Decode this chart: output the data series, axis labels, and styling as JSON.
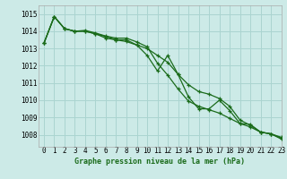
{
  "title": "Graphe pression niveau de la mer (hPa)",
  "background_color": "#cceae7",
  "grid_color": "#aad4d0",
  "line_color": "#1a6b1a",
  "xlim": [
    -0.5,
    23
  ],
  "ylim": [
    1007.3,
    1015.5
  ],
  "yticks": [
    1008,
    1009,
    1010,
    1011,
    1012,
    1013,
    1014,
    1015
  ],
  "xticks": [
    0,
    1,
    2,
    3,
    4,
    5,
    6,
    7,
    8,
    9,
    10,
    11,
    12,
    13,
    14,
    15,
    16,
    17,
    18,
    19,
    20,
    21,
    22,
    23
  ],
  "series1": [
    1013.3,
    1014.85,
    1014.15,
    1014.0,
    1014.0,
    1013.85,
    1013.6,
    1013.5,
    1013.4,
    1013.2,
    1012.6,
    1011.7,
    1012.6,
    1011.5,
    1010.2,
    1009.5,
    1009.5,
    1010.0,
    1009.4,
    1008.65,
    1008.6,
    1008.15,
    1008.05,
    1007.75
  ],
  "series2": [
    1013.3,
    1014.85,
    1014.15,
    1014.0,
    1014.0,
    1013.85,
    1013.7,
    1013.5,
    1013.5,
    1013.2,
    1013.0,
    1012.6,
    1012.2,
    1011.5,
    1010.9,
    1010.5,
    1010.35,
    1010.1,
    1009.65,
    1008.85,
    1008.55,
    1008.15,
    1008.05,
    1007.8
  ],
  "series3": [
    1013.3,
    1014.85,
    1014.15,
    1014.0,
    1014.05,
    1013.9,
    1013.72,
    1013.6,
    1013.6,
    1013.38,
    1013.1,
    1012.15,
    1011.45,
    1010.65,
    1009.95,
    1009.65,
    1009.45,
    1009.25,
    1008.95,
    1008.65,
    1008.45,
    1008.15,
    1008.05,
    1007.85
  ]
}
